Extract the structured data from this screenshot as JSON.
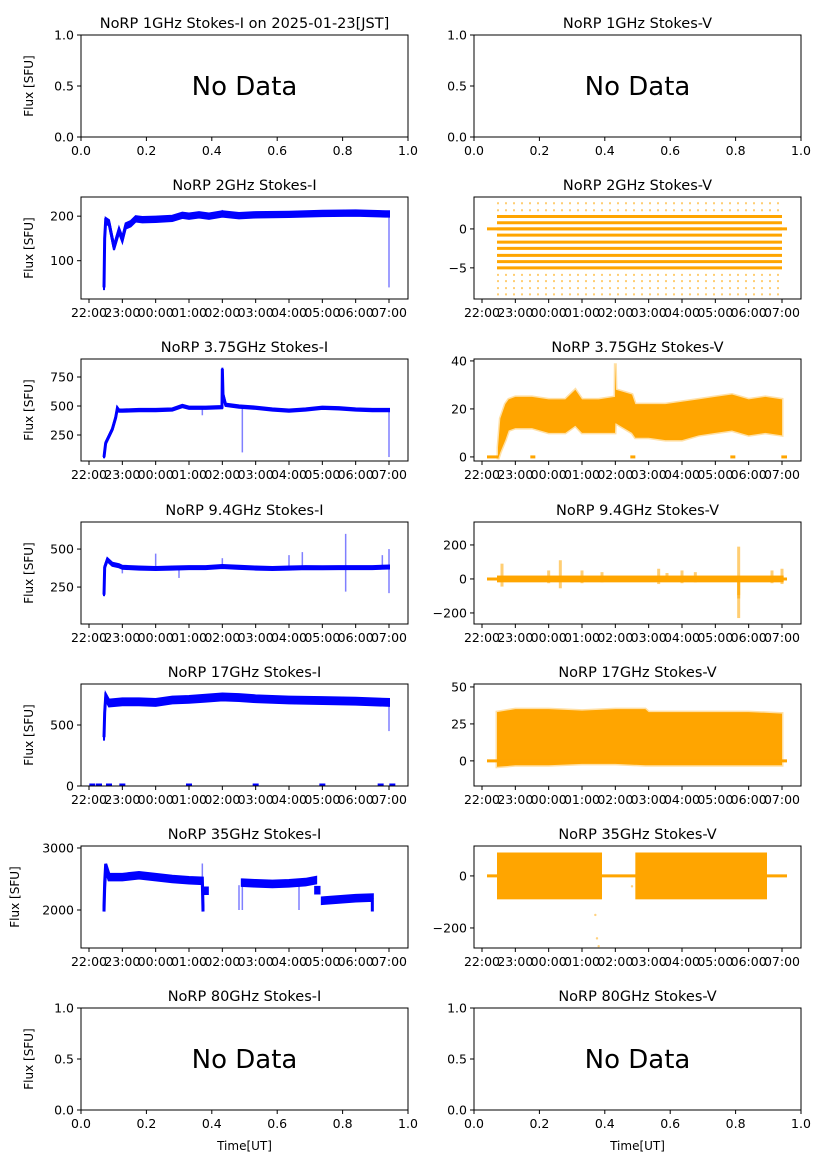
{
  "figure": {
    "x_label": "Time[UT]",
    "y_label": "Flux [SFU]",
    "no_data_text": "No Data",
    "colors": {
      "stokes_i": "#0000ff",
      "stokes_v": "#ffa500",
      "axes": "#000000"
    }
  },
  "chart_data": [
    {
      "id": "1ghz-i",
      "type": "scatter",
      "title": "NoRP 1GHz Stokes-I on 2025-01-23[JST]",
      "ylabel": "Flux [SFU]",
      "xlabel": "",
      "no_data": true,
      "xlim": [
        0,
        1
      ],
      "ylim": [
        0,
        1
      ],
      "xticks": [
        0.0,
        0.2,
        0.4,
        0.6,
        0.8,
        1.0
      ],
      "xtick_labels": [
        "0.0",
        "0.2",
        "0.4",
        "0.6",
        "0.8",
        "1.0"
      ],
      "yticks": [
        0.0,
        0.5,
        1.0
      ],
      "ytick_labels": [
        "0.0",
        "0.5",
        "1.0"
      ]
    },
    {
      "id": "1ghz-v",
      "type": "scatter",
      "title": "NoRP 1GHz Stokes-V",
      "ylabel": "",
      "xlabel": "",
      "no_data": true,
      "xlim": [
        0,
        1
      ],
      "ylim": [
        0,
        1
      ],
      "xticks": [
        0.0,
        0.2,
        0.4,
        0.6,
        0.8,
        1.0
      ],
      "xtick_labels": [
        "0.0",
        "0.2",
        "0.4",
        "0.6",
        "0.8",
        "1.0"
      ],
      "yticks": [
        0.0,
        0.5,
        1.0
      ],
      "ytick_labels": [
        "0.0",
        "0.5",
        "1.0"
      ]
    },
    {
      "id": "2ghz-i",
      "type": "scatter",
      "title": "NoRP 2GHz Stokes-I",
      "ylabel": "Flux [SFU]",
      "xlabel": "",
      "series_color": "stokes_i",
      "xlim": [
        -0.24,
        9.57
      ],
      "ylim": [
        14,
        243
      ],
      "xticks": [
        0,
        1,
        2,
        3,
        4,
        5,
        6,
        7,
        8,
        9
      ],
      "xtick_labels": [
        "22:00",
        "23:00",
        "00:00",
        "01:00",
        "02:00",
        "03:00",
        "04:00",
        "05:00",
        "06:00",
        "07:00"
      ],
      "yticks": [
        100,
        200
      ],
      "ytick_labels": [
        "100",
        "200"
      ],
      "x": [
        0.45,
        0.47,
        0.5,
        0.6,
        0.75,
        0.9,
        1.0,
        1.1,
        1.25,
        1.4,
        1.6,
        2.0,
        2.5,
        2.8,
        3.0,
        3.3,
        3.6,
        4.0,
        4.5,
        5.0,
        6.0,
        7.0,
        8.0,
        8.9,
        9.0
      ],
      "y": [
        40,
        150,
        190,
        185,
        130,
        168,
        148,
        178,
        183,
        194,
        192,
        193,
        195,
        202,
        200,
        203,
        200,
        205,
        201,
        203,
        204,
        206,
        207,
        205,
        205
      ],
      "band": 6,
      "spikes": [
        {
          "x": 4.0,
          "from": 200,
          "to": 214
        },
        {
          "x": 3.35,
          "from": 200,
          "to": 210
        },
        {
          "x": 9.0,
          "from": 200,
          "to": 40
        }
      ]
    },
    {
      "id": "2ghz-v",
      "type": "scatter",
      "title": "NoRP 2GHz Stokes-V",
      "ylabel": "",
      "xlabel": "",
      "series_color": "stokes_v",
      "xlim": [
        -0.24,
        9.57
      ],
      "ylim": [
        -9.0,
        4.1
      ],
      "xticks": [
        0,
        1,
        2,
        3,
        4,
        5,
        6,
        7,
        8,
        9
      ],
      "xtick_labels": [
        "22:00",
        "23:00",
        "00:00",
        "01:00",
        "02:00",
        "03:00",
        "04:00",
        "05:00",
        "06:00",
        "07:00"
      ],
      "yticks": [
        -5,
        0
      ],
      "ytick_labels": [
        "−5",
        "0"
      ],
      "zero_line": [
        0.15,
        9.15
      ],
      "data_range": [
        0.45,
        9.0
      ],
      "levels_dense": [
        1.6,
        0.8,
        0,
        -0.8,
        -1.7,
        -2.5,
        -3.4,
        -4.2,
        -5.0
      ],
      "levels_sparse": [
        3.3,
        2.4,
        -5.9,
        -6.7,
        -7.6,
        -8.4
      ]
    },
    {
      "id": "375ghz-i",
      "type": "scatter",
      "title": "NoRP 3.75GHz Stokes-I",
      "ylabel": "Flux [SFU]",
      "xlabel": "",
      "series_color": "stokes_i",
      "xlim": [
        -0.24,
        9.57
      ],
      "ylim": [
        26,
        905
      ],
      "xticks": [
        0,
        1,
        2,
        3,
        4,
        5,
        6,
        7,
        8,
        9
      ],
      "xtick_labels": [
        "22:00",
        "23:00",
        "00:00",
        "01:00",
        "02:00",
        "03:00",
        "04:00",
        "05:00",
        "06:00",
        "07:00"
      ],
      "yticks": [
        250,
        500,
        750
      ],
      "ytick_labels": [
        "250",
        "500",
        "750"
      ],
      "x": [
        0.45,
        0.5,
        0.6,
        0.7,
        0.8,
        0.85,
        0.9,
        1.0,
        1.5,
        2.0,
        2.5,
        2.8,
        3.0,
        3.5,
        3.99,
        4.0,
        4.02,
        4.1,
        4.5,
        5.0,
        5.5,
        6.0,
        6.5,
        7.0,
        7.5,
        8.0,
        8.5,
        9.0
      ],
      "y": [
        60,
        180,
        240,
        300,
        400,
        480,
        460,
        460,
        465,
        465,
        470,
        500,
        485,
        485,
        490,
        820,
        600,
        510,
        495,
        485,
        470,
        460,
        470,
        485,
        480,
        470,
        465,
        465
      ],
      "band": 10,
      "spikes": [
        {
          "x": 4.6,
          "from": 490,
          "to": 100
        },
        {
          "x": 9.0,
          "from": 465,
          "to": 60
        },
        {
          "x": 3.4,
          "from": 480,
          "to": 420
        }
      ]
    },
    {
      "id": "375ghz-v",
      "type": "scatter",
      "title": "NoRP 3.75GHz Stokes-V",
      "ylabel": "",
      "xlabel": "",
      "series_color": "stokes_v",
      "xlim": [
        -0.24,
        9.57
      ],
      "ylim": [
        -1.7,
        40.8
      ],
      "xticks": [
        0,
        1,
        2,
        3,
        4,
        5,
        6,
        7,
        8,
        9
      ],
      "xtick_labels": [
        "22:00",
        "23:00",
        "00:00",
        "01:00",
        "02:00",
        "03:00",
        "04:00",
        "05:00",
        "06:00",
        "07:00"
      ],
      "yticks": [
        0,
        20,
        40
      ],
      "ytick_labels": [
        "0",
        "20",
        "40"
      ],
      "zero_segments": [
        [
          0.15,
          0.48
        ],
        [
          1.45,
          1.6
        ],
        [
          4.45,
          4.6
        ],
        [
          7.45,
          7.6
        ],
        [
          8.98,
          9.15
        ]
      ],
      "x": [
        0.48,
        0.55,
        0.7,
        0.8,
        1.0,
        1.5,
        2.0,
        2.5,
        2.8,
        3.0,
        3.5,
        3.99,
        4.0,
        4.02,
        4.5,
        4.6,
        5.0,
        5.5,
        6.0,
        6.5,
        7.0,
        7.5,
        8.0,
        8.5,
        9.0
      ],
      "hi": [
        4,
        16,
        22,
        24,
        25,
        25,
        24,
        24,
        28,
        24,
        24,
        25,
        39,
        28,
        26,
        22,
        22,
        22,
        23,
        24,
        25,
        26,
        24,
        25,
        24
      ],
      "lo": [
        -1,
        2,
        7,
        11,
        12,
        12,
        10,
        10,
        13,
        10,
        10,
        10,
        14,
        14,
        10,
        8,
        8,
        7,
        7,
        9,
        10,
        11,
        9,
        10,
        9
      ]
    },
    {
      "id": "94ghz-i",
      "type": "scatter",
      "title": "NoRP 9.4GHz Stokes-I",
      "ylabel": "Flux [SFU]",
      "xlabel": "",
      "series_color": "stokes_i",
      "xlim": [
        -0.24,
        9.57
      ],
      "ylim": [
        7,
        678
      ],
      "xticks": [
        0,
        1,
        2,
        3,
        4,
        5,
        6,
        7,
        8,
        9
      ],
      "xtick_labels": [
        "22:00",
        "23:00",
        "00:00",
        "01:00",
        "02:00",
        "03:00",
        "04:00",
        "05:00",
        "06:00",
        "07:00"
      ],
      "yticks": [
        250,
        500
      ],
      "ytick_labels": [
        "250",
        "500"
      ],
      "x": [
        0.45,
        0.47,
        0.55,
        0.7,
        0.9,
        1.0,
        1.5,
        2.0,
        2.5,
        3.0,
        3.5,
        4.0,
        4.5,
        5.0,
        5.5,
        6.0,
        6.5,
        7.0,
        7.5,
        8.0,
        8.5,
        9.0
      ],
      "y": [
        200,
        380,
        430,
        400,
        390,
        380,
        375,
        372,
        375,
        378,
        378,
        385,
        380,
        375,
        372,
        375,
        378,
        377,
        378,
        378,
        378,
        382
      ],
      "band": 10,
      "spikes": [
        {
          "x": 1.0,
          "from": 380,
          "to": 340
        },
        {
          "x": 2.0,
          "from": 380,
          "to": 470
        },
        {
          "x": 2.7,
          "from": 375,
          "to": 310
        },
        {
          "x": 4.0,
          "from": 380,
          "to": 440
        },
        {
          "x": 6.0,
          "from": 378,
          "to": 460
        },
        {
          "x": 7.7,
          "from": 378,
          "to": 600
        },
        {
          "x": 7.7,
          "from": 378,
          "to": 220
        },
        {
          "x": 6.4,
          "from": 378,
          "to": 480
        },
        {
          "x": 8.8,
          "from": 378,
          "to": 460
        },
        {
          "x": 9.0,
          "from": 378,
          "to": 210
        },
        {
          "x": 9.0,
          "from": 378,
          "to": 500
        }
      ]
    },
    {
      "id": "94ghz-v",
      "type": "scatter",
      "title": "NoRP 9.4GHz Stokes-V",
      "ylabel": "",
      "xlabel": "",
      "series_color": "stokes_v",
      "xlim": [
        -0.24,
        9.57
      ],
      "ylim": [
        -265,
        335
      ],
      "xticks": [
        0,
        1,
        2,
        3,
        4,
        5,
        6,
        7,
        8,
        9
      ],
      "xtick_labels": [
        "22:00",
        "23:00",
        "00:00",
        "01:00",
        "02:00",
        "03:00",
        "04:00",
        "05:00",
        "06:00",
        "07:00"
      ],
      "yticks": [
        -200,
        0,
        200
      ],
      "ytick_labels": [
        "−200",
        "0",
        "200"
      ],
      "zero_line": [
        0.15,
        9.15
      ],
      "band": 8,
      "bursts": [
        {
          "x": 0.6,
          "amp": 90
        },
        {
          "x": 2.0,
          "amp": 50
        },
        {
          "x": 2.35,
          "amp": 110
        },
        {
          "x": 3.0,
          "amp": 50
        },
        {
          "x": 3.6,
          "amp": 40
        },
        {
          "x": 5.3,
          "amp": 60
        },
        {
          "x": 5.55,
          "amp": 35
        },
        {
          "x": 6.0,
          "amp": 50
        },
        {
          "x": 6.4,
          "amp": 40
        },
        {
          "x": 7.7,
          "amp": 190
        },
        {
          "x": 7.7,
          "amp": -230
        },
        {
          "x": 8.7,
          "amp": 50
        },
        {
          "x": 9.0,
          "amp": 60
        }
      ]
    },
    {
      "id": "17ghz-i",
      "type": "scatter",
      "title": "NoRP 17GHz Stokes-I",
      "ylabel": "Flux [SFU]",
      "xlabel": "",
      "series_color": "stokes_i",
      "xlim": [
        -0.24,
        9.57
      ],
      "ylim": [
        0,
        836
      ],
      "xticks": [
        0,
        1,
        2,
        3,
        4,
        5,
        6,
        7,
        8,
        9
      ],
      "xtick_labels": [
        "22:00",
        "23:00",
        "00:00",
        "01:00",
        "02:00",
        "03:00",
        "04:00",
        "05:00",
        "06:00",
        "07:00"
      ],
      "yticks": [
        0,
        500
      ],
      "ytick_labels": [
        "0",
        "500"
      ],
      "x": [
        0.45,
        0.47,
        0.5,
        0.6,
        1.0,
        1.5,
        2.0,
        2.5,
        3.0,
        3.5,
        4.0,
        4.5,
        5.0,
        6.0,
        7.0,
        8.0,
        9.0
      ],
      "y": [
        400,
        600,
        730,
        680,
        690,
        690,
        685,
        705,
        710,
        720,
        730,
        725,
        715,
        705,
        700,
        695,
        685
      ],
      "band": 28,
      "spikes": [
        {
          "x": 9.0,
          "from": 680,
          "to": 450
        }
      ],
      "zero_ticks": [
        0.1,
        0.3,
        0.6,
        1.0,
        3.0,
        5.0,
        7.0,
        8.75,
        9.1
      ]
    },
    {
      "id": "17ghz-v",
      "type": "scatter",
      "title": "NoRP 17GHz Stokes-V",
      "ylabel": "",
      "xlabel": "",
      "series_color": "stokes_v",
      "xlim": [
        -0.24,
        9.57
      ],
      "ylim": [
        -17,
        52
      ],
      "xticks": [
        0,
        1,
        2,
        3,
        4,
        5,
        6,
        7,
        8,
        9
      ],
      "xtick_labels": [
        "22:00",
        "23:00",
        "00:00",
        "01:00",
        "02:00",
        "03:00",
        "04:00",
        "05:00",
        "06:00",
        "07:00"
      ],
      "yticks": [
        0,
        25,
        50
      ],
      "ytick_labels": [
        "0",
        "25",
        "50"
      ],
      "zero_line": [
        0.15,
        9.15
      ],
      "x": [
        0.45,
        1.0,
        2.0,
        3.0,
        4.0,
        4.9,
        5.0,
        6.0,
        7.0,
        8.0,
        9.0
      ],
      "hi": [
        33,
        35,
        35,
        34,
        35,
        35,
        33,
        33,
        33,
        33,
        32
      ],
      "lo": [
        -4,
        -3,
        -3,
        -2,
        -2,
        -3,
        -3,
        -3,
        -3,
        -3,
        -3
      ]
    },
    {
      "id": "35ghz-i",
      "type": "scatter",
      "title": "NoRP 35GHz Stokes-I",
      "ylabel": "Flux [SFU]",
      "xlabel": "",
      "series_color": "stokes_i",
      "xlim": [
        -0.24,
        9.57
      ],
      "ylim": [
        1387,
        3032
      ],
      "xticks": [
        0,
        1,
        2,
        3,
        4,
        5,
        6,
        7,
        8,
        9
      ],
      "xtick_labels": [
        "22:00",
        "23:00",
        "00:00",
        "01:00",
        "02:00",
        "03:00",
        "04:00",
        "05:00",
        "06:00",
        "07:00"
      ],
      "yticks": [
        2000,
        3000
      ],
      "ytick_labels": [
        "2000",
        "3000"
      ],
      "segments": [
        {
          "x": [
            0.45,
            0.47,
            0.5,
            0.6,
            1.0,
            1.5,
            2.0,
            2.5,
            3.0,
            3.4,
            3.42
          ],
          "y": [
            2020,
            2400,
            2700,
            2530,
            2530,
            2560,
            2530,
            2500,
            2480,
            2470,
            2020
          ]
        },
        {
          "x": [
            3.45,
            3.55
          ],
          "y": [
            2310,
            2310
          ]
        },
        {
          "x": [
            4.6,
            5.0,
            5.5,
            6.0,
            6.5,
            6.8
          ],
          "y": [
            2440,
            2430,
            2420,
            2430,
            2450,
            2480
          ]
        },
        {
          "x": [
            6.8,
            6.9
          ],
          "y": [
            2320,
            2320
          ]
        },
        {
          "x": [
            7.0,
            7.5,
            8.0,
            8.5,
            8.5
          ],
          "y": [
            2150,
            2170,
            2190,
            2200,
            2020
          ]
        }
      ],
      "band": 45,
      "spikes": [
        {
          "x": 3.4,
          "from": 2400,
          "to": 2750
        },
        {
          "x": 4.5,
          "from": 2400,
          "to": 2000
        },
        {
          "x": 4.6,
          "from": 2400,
          "to": 2000
        },
        {
          "x": 6.3,
          "from": 2450,
          "to": 2000
        }
      ]
    },
    {
      "id": "35ghz-v",
      "type": "scatter",
      "title": "NoRP 35GHz Stokes-V",
      "ylabel": "",
      "xlabel": "",
      "series_color": "stokes_v",
      "xlim": [
        -0.24,
        9.57
      ],
      "ylim": [
        -277,
        115
      ],
      "xticks": [
        0,
        1,
        2,
        3,
        4,
        5,
        6,
        7,
        8,
        9
      ],
      "xtick_labels": [
        "22:00",
        "23:00",
        "00:00",
        "01:00",
        "02:00",
        "03:00",
        "04:00",
        "05:00",
        "06:00",
        "07:00"
      ],
      "yticks": [
        -200,
        0
      ],
      "ytick_labels": [
        "−200",
        "0"
      ],
      "zero_line": [
        0.15,
        9.15
      ],
      "blocks": [
        {
          "from": 0.45,
          "to": 3.6,
          "hi": 90,
          "lo": -90
        },
        {
          "from": 4.6,
          "to": 8.55,
          "hi": 90,
          "lo": -90
        }
      ],
      "outliers": [
        {
          "x": 3.4,
          "y": -150
        },
        {
          "x": 3.45,
          "y": -240
        },
        {
          "x": 3.5,
          "y": -270
        },
        {
          "x": 4.5,
          "y": -40
        }
      ]
    },
    {
      "id": "80ghz-i",
      "type": "scatter",
      "title": "NoRP 80GHz Stokes-I",
      "ylabel": "Flux [SFU]",
      "xlabel": "Time[UT]",
      "no_data": true,
      "xlim": [
        0,
        1
      ],
      "ylim": [
        0,
        1
      ],
      "xticks": [
        0.0,
        0.2,
        0.4,
        0.6,
        0.8,
        1.0
      ],
      "xtick_labels": [
        "0.0",
        "0.2",
        "0.4",
        "0.6",
        "0.8",
        "1.0"
      ],
      "yticks": [
        0.0,
        0.5,
        1.0
      ],
      "ytick_labels": [
        "0.0",
        "0.5",
        "1.0"
      ]
    },
    {
      "id": "80ghz-v",
      "type": "scatter",
      "title": "NoRP 80GHz Stokes-V",
      "ylabel": "",
      "xlabel": "Time[UT]",
      "no_data": true,
      "xlim": [
        0,
        1
      ],
      "ylim": [
        0,
        1
      ],
      "xticks": [
        0.0,
        0.2,
        0.4,
        0.6,
        0.8,
        1.0
      ],
      "xtick_labels": [
        "0.0",
        "0.2",
        "0.4",
        "0.6",
        "0.8",
        "1.0"
      ],
      "yticks": [
        0.0,
        0.5,
        1.0
      ],
      "ytick_labels": [
        "0.0",
        "0.5",
        "1.0"
      ]
    }
  ]
}
